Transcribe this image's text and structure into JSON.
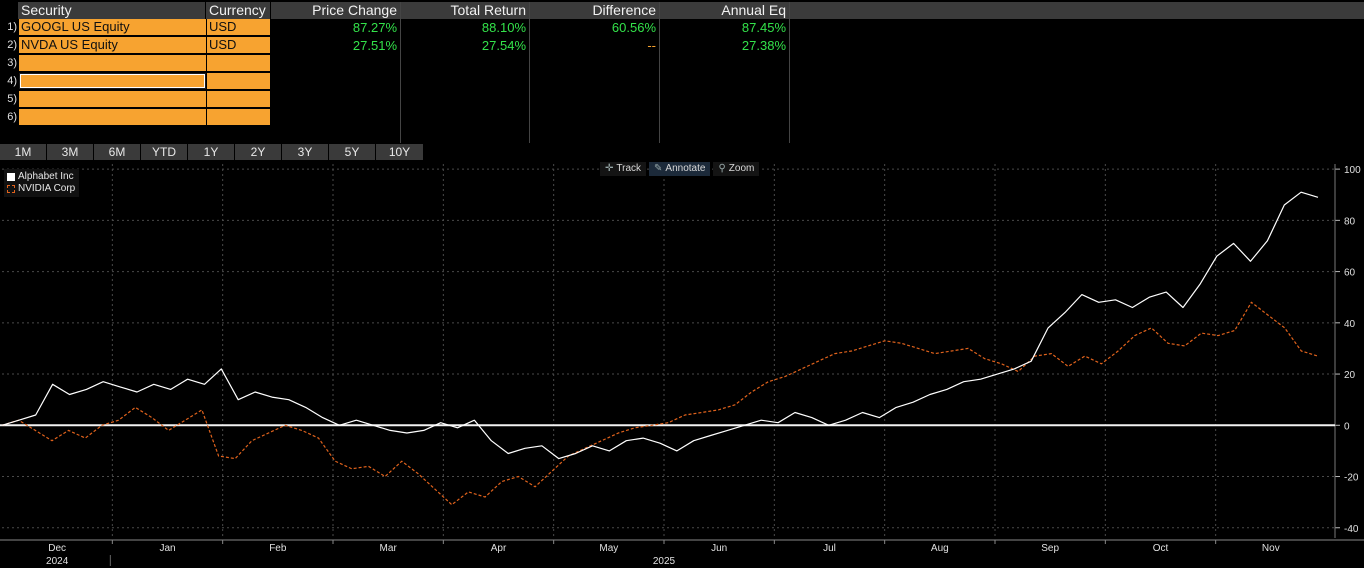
{
  "table": {
    "headers": {
      "security": "Security",
      "currency": "Currency",
      "price_change": "Price Change",
      "total_return": "Total Return",
      "difference": "Difference",
      "annual_eq": "Annual Eq"
    },
    "rows": [
      {
        "num": "1)",
        "security": "GOOGL US Equity",
        "currency": "USD",
        "price_change": "87.27%",
        "total_return": "88.10%",
        "difference": "60.56%",
        "annual_eq": "87.45%"
      },
      {
        "num": "2)",
        "security": "NVDA US Equity",
        "currency": "USD",
        "price_change": "27.51%",
        "total_return": "27.54%",
        "difference": "--",
        "annual_eq": "27.38%"
      },
      {
        "num": "3)",
        "security": "",
        "currency": "",
        "price_change": "",
        "total_return": "",
        "difference": "",
        "annual_eq": ""
      },
      {
        "num": "4)",
        "security": "",
        "currency": "",
        "price_change": "",
        "total_return": "",
        "difference": "",
        "annual_eq": ""
      },
      {
        "num": "5)",
        "security": "",
        "currency": "",
        "price_change": "",
        "total_return": "",
        "difference": "",
        "annual_eq": ""
      },
      {
        "num": "6)",
        "security": "",
        "currency": "",
        "price_change": "",
        "total_return": "",
        "difference": "",
        "annual_eq": ""
      }
    ]
  },
  "periods": [
    "1M",
    "3M",
    "6M",
    "YTD",
    "1Y",
    "2Y",
    "3Y",
    "5Y",
    "10Y"
  ],
  "toolbar": {
    "track": "Track",
    "annotate": "Annotate",
    "zoom": "Zoom"
  },
  "legend": {
    "alphabet": "Alphabet Inc",
    "nvidia": "NVIDIA Corp"
  },
  "colors": {
    "orange": "#f7a330",
    "green": "#33e24a",
    "alphabet_line": "#ffffff",
    "nvidia_line": "#e0621c"
  },
  "chart_data": {
    "type": "line",
    "x_labels": [
      "Dec",
      "Jan",
      "Feb",
      "Mar",
      "Apr",
      "May",
      "Jun",
      "Jul",
      "Aug",
      "Sep",
      "Oct",
      "Nov"
    ],
    "year_labels": [
      "2024",
      "2025"
    ],
    "y_ticks": [
      100,
      80,
      60,
      40,
      20,
      0,
      -20,
      -40
    ],
    "ylim": [
      -44,
      102
    ],
    "grid": true,
    "legend_position": "top-left",
    "series": [
      {
        "name": "Alphabet Inc",
        "style": "solid",
        "values": [
          0,
          2,
          4,
          16,
          12,
          14,
          17,
          15,
          13,
          16,
          14,
          18,
          16,
          22,
          10,
          13,
          11,
          10,
          7,
          3,
          0,
          2,
          0,
          -2,
          -3,
          -2,
          1,
          -1,
          2,
          -6,
          -11,
          -9,
          -8,
          -13,
          -11,
          -8,
          -10,
          -6,
          -5,
          -7,
          -10,
          -6,
          -4,
          -2,
          0,
          2,
          1,
          5,
          3,
          0,
          2,
          5,
          3,
          7,
          9,
          12,
          14,
          17,
          18,
          20,
          22,
          25,
          38,
          44,
          51,
          48,
          49,
          46,
          50,
          52,
          46,
          55,
          66,
          71,
          64,
          72,
          86,
          91,
          89
        ]
      },
      {
        "name": "NVIDIA Corp",
        "style": "dashed",
        "values": [
          0,
          2,
          -2,
          -6,
          -2,
          -5,
          0,
          2,
          7,
          3,
          -2,
          2,
          6,
          -12,
          -13,
          -6,
          -3,
          0,
          -2,
          -5,
          -14,
          -17,
          -16,
          -20,
          -14,
          -19,
          -25,
          -31,
          -26,
          -28,
          -22,
          -20,
          -24,
          -18,
          -12,
          -9,
          -6,
          -3,
          -1,
          0,
          1,
          4,
          5,
          6,
          8,
          13,
          17,
          19,
          22,
          25,
          28,
          29,
          31,
          33,
          32,
          30,
          28,
          29,
          30,
          26,
          24,
          21,
          27,
          28,
          23,
          27,
          24,
          29,
          35,
          38,
          32,
          31,
          36,
          35,
          37,
          48,
          43,
          38,
          29,
          27
        ]
      }
    ]
  }
}
